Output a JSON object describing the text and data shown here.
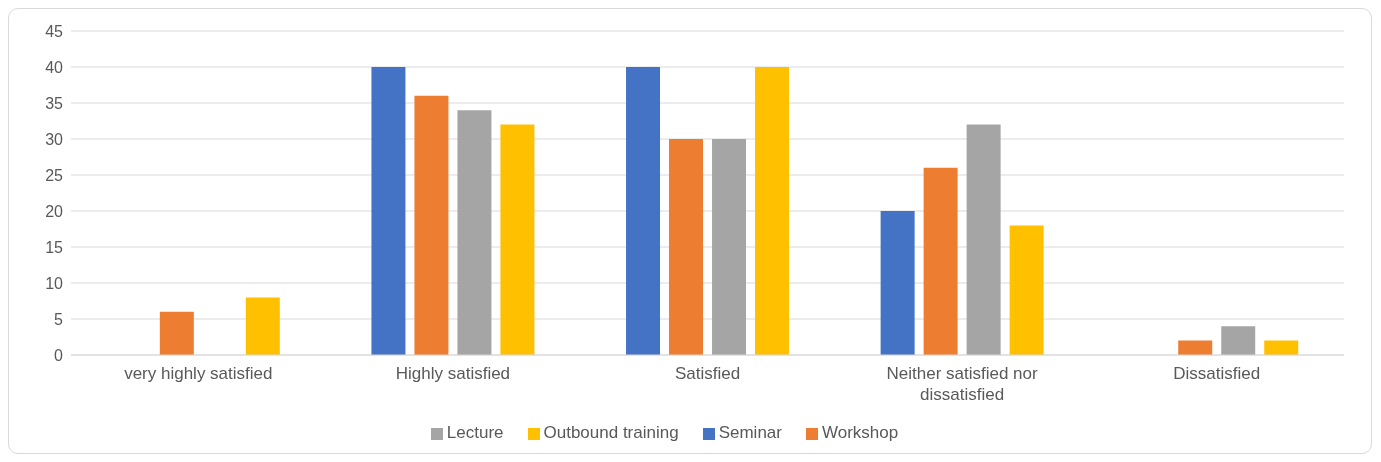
{
  "chart_data": {
    "type": "bar",
    "categories": [
      "very highly satisfied",
      "Highly satisfied",
      "Satisfied",
      "Neither satisfied nor dissatisfied",
      "Dissatisfied"
    ],
    "series": [
      {
        "name": "Seminar",
        "color": "#4472c4",
        "values": [
          0,
          40,
          40,
          20,
          0
        ]
      },
      {
        "name": "Workshop",
        "color": "#ed7d31",
        "values": [
          6,
          36,
          30,
          26,
          2
        ]
      },
      {
        "name": "Lecture",
        "color": "#a5a5a5",
        "values": [
          0,
          34,
          30,
          32,
          4
        ]
      },
      {
        "name": "Outbound training",
        "color": "#ffc000",
        "values": [
          8,
          32,
          40,
          18,
          2
        ]
      }
    ],
    "ylim": [
      0,
      45
    ],
    "yticks": [
      0,
      5,
      10,
      15,
      20,
      25,
      30,
      35,
      40,
      45
    ],
    "grid": "y",
    "legend": "bottom"
  }
}
